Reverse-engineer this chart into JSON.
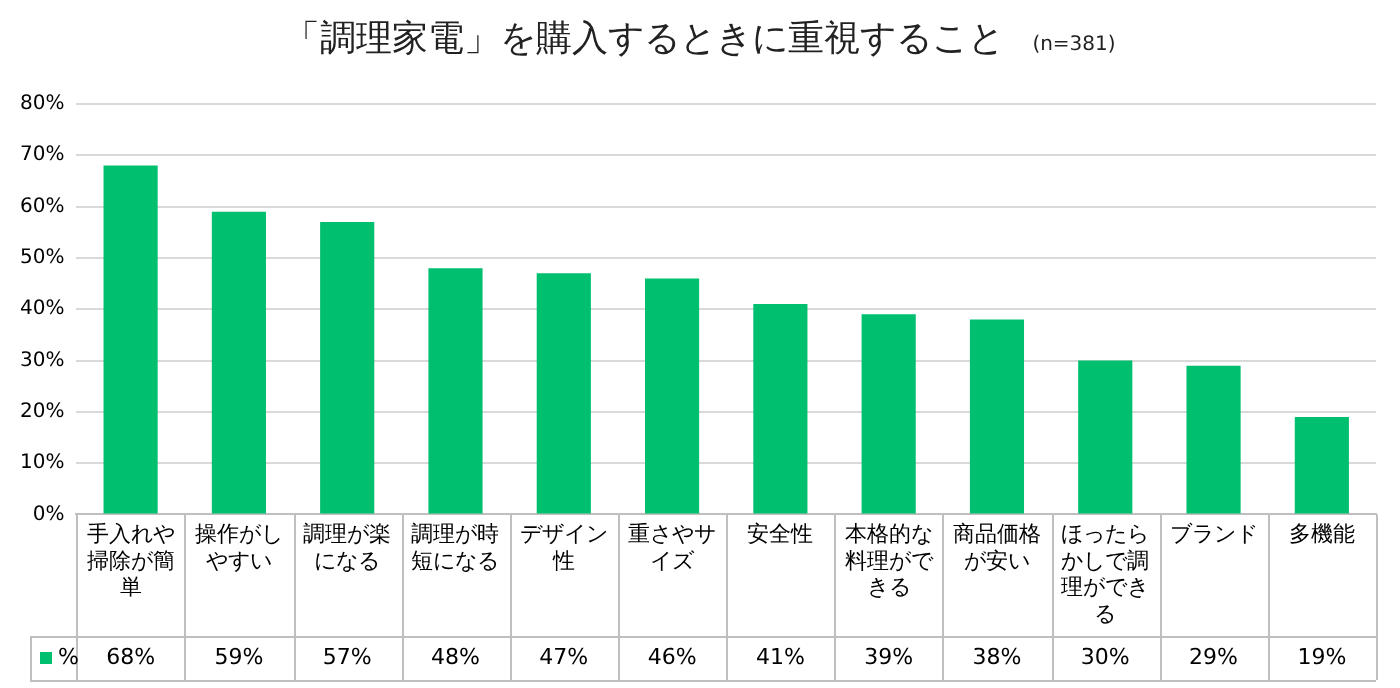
{
  "chart_data": {
    "type": "bar",
    "title": "「調理家電」を購入するときに重視すること",
    "subtitle": "(n=381)",
    "categories": [
      "手入れや掃除が簡単",
      "操作がしやすい",
      "調理が楽になる",
      "調理が時短になる",
      "デザイン性",
      "重さやサイズ",
      "安全性",
      "本格的な料理ができる",
      "商品価格が安い",
      "ほったらかしで調理ができる",
      "ブランド",
      "多機能"
    ],
    "series": [
      {
        "name": "%",
        "color": "#00bf6f",
        "values": [
          68,
          59,
          57,
          48,
          47,
          46,
          41,
          39,
          38,
          30,
          29,
          19
        ],
        "value_labels": [
          "68%",
          "59%",
          "57%",
          "48%",
          "47%",
          "46%",
          "41%",
          "39%",
          "38%",
          "30%",
          "29%",
          "19%"
        ]
      }
    ],
    "ylim": [
      0,
      80
    ],
    "yticks": [
      {
        "value": 0,
        "label": "0%"
      },
      {
        "value": 10,
        "label": "10%"
      },
      {
        "value": 20,
        "label": "20%"
      },
      {
        "value": 30,
        "label": "30%"
      },
      {
        "value": 40,
        "label": "40%"
      },
      {
        "value": 50,
        "label": "50%"
      },
      {
        "value": 60,
        "label": "60%"
      },
      {
        "value": 70,
        "label": "70%"
      },
      {
        "value": 80,
        "label": "80%"
      }
    ],
    "grid": "y",
    "legend": "bottom"
  }
}
